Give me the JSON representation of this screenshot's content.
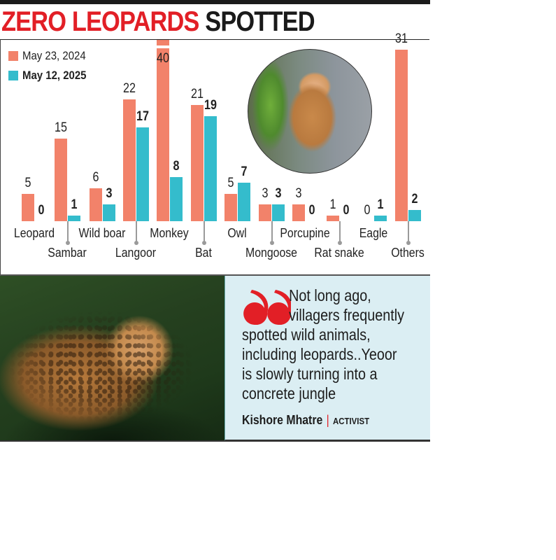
{
  "headline": {
    "red_part": "ZERO LEOPARDS",
    "dark_part": "SPOTTED"
  },
  "colors": {
    "series_2024": "#f2826a",
    "series_2025": "#34bccc",
    "headline_red": "#e21f26",
    "quote_bg": "#dbeef3"
  },
  "legend": [
    {
      "label": "May 23, 2024",
      "color": "#f2826a"
    },
    {
      "label": "May 12, 2025",
      "color": "#34bccc"
    }
  ],
  "chart_data": {
    "type": "bar",
    "title": "ZERO LEOPARDS SPOTTED",
    "xlabel": "",
    "ylabel": "",
    "categories": [
      "Leopard",
      "Sambar",
      "Wild boar",
      "Langoor",
      "Monkey",
      "Bat",
      "Owl",
      "Mongoose",
      "Porcupine",
      "Rat snake",
      "Eagle",
      "Others"
    ],
    "series": [
      {
        "name": "May 23, 2024",
        "values": [
          5,
          15,
          6,
          22,
          40,
          21,
          5,
          3,
          3,
          1,
          0,
          31
        ]
      },
      {
        "name": "May 12, 2025",
        "values": [
          0,
          1,
          3,
          17,
          8,
          19,
          7,
          3,
          0,
          0,
          1,
          2
        ]
      }
    ],
    "value_labels_2024": [
      "5",
      "15",
      "6",
      "22",
      "40",
      "21",
      "5",
      "3",
      "3",
      "1",
      "0",
      "31"
    ],
    "value_labels_2025": [
      "0",
      "1",
      "3",
      "17",
      "8",
      "19",
      "7",
      "3",
      "0",
      "0",
      "1",
      "2"
    ],
    "notes": "Monkey (40) and Others (31) bars are truncated at the top of the frame",
    "legend_position": "top-left",
    "grid": false
  },
  "images": {
    "monkey_photo": "monkey-photo",
    "leopard_photo": "leopard-photo"
  },
  "quote": {
    "text_first": "Not long ago,",
    "text_second": "villagers frequently",
    "text_rest": "spotted wild animals, including leopards..Yeoor is slowly turning into a concrete jungle",
    "author": "Kishore Mhatre",
    "separator": "|",
    "role": "ACTIVIST"
  }
}
